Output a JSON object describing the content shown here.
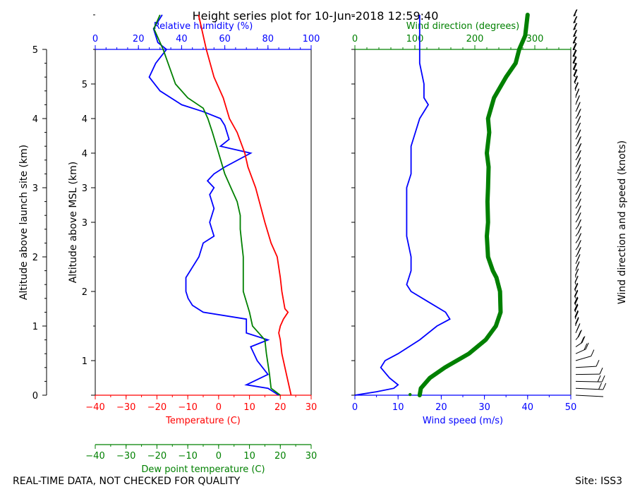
{
  "chart_data": {
    "type": "line",
    "title": "Height series plot for 10-Jun-2018 12:59:40",
    "footer_left": "REAL-TIME DATA, NOT CHECKED FOR QUALITY",
    "footer_right": "Site: ISS3",
    "colors": {
      "temperature": "#ff0000",
      "dewpoint": "#008000",
      "rh": "#0000ff",
      "wind_speed": "#0000ff",
      "wind_dir": "#008000",
      "barbs": "#000000"
    },
    "left_panel": {
      "outer_ylabel": "Altitude above launch site (km)",
      "inner_ylabel": "Altitude above MSL (km)",
      "outer_ylim": [
        0,
        5
      ],
      "outer_yticks": [
        "0",
        "1",
        "2",
        "3",
        "4",
        "5"
      ],
      "inner_yticks": [
        "1",
        "2",
        "3",
        "3",
        "4",
        "4",
        "5"
      ],
      "inner_ytick_km": [
        0.5,
        1.5,
        2.5,
        3.0,
        3.5,
        4.0,
        4.5
      ],
      "temperature_axis": {
        "label": "Temperature (C)",
        "range": [
          -40,
          30
        ],
        "ticks": [
          "−40",
          "−30",
          "−20",
          "−10",
          "0",
          "10",
          "20",
          "30"
        ]
      },
      "dewpoint_axis": {
        "label": "Dew point temperature (C)",
        "range": [
          -40,
          30
        ],
        "ticks": [
          "−40",
          "−30",
          "−20",
          "−10",
          "0",
          "10",
          "20",
          "30"
        ]
      },
      "rh_axis": {
        "label": "Relative humidity (%)",
        "range": [
          0,
          100
        ],
        "ticks": [
          "0",
          "20",
          "40",
          "60",
          "80",
          "100"
        ]
      },
      "temperature": [
        [
          0,
          23.5
        ],
        [
          0.3,
          22
        ],
        [
          0.6,
          20.5
        ],
        [
          0.8,
          20
        ],
        [
          0.9,
          19.5
        ],
        [
          1.0,
          20
        ],
        [
          1.05,
          20.5
        ],
        [
          1.1,
          21
        ],
        [
          1.2,
          22.5
        ],
        [
          1.25,
          21.5
        ],
        [
          1.5,
          20.5
        ],
        [
          1.7,
          20
        ],
        [
          2.0,
          19
        ],
        [
          2.2,
          17
        ],
        [
          2.5,
          15
        ],
        [
          3.0,
          12
        ],
        [
          3.3,
          9.5
        ],
        [
          3.5,
          8.5
        ],
        [
          3.8,
          6
        ],
        [
          4.0,
          3.5
        ],
        [
          4.3,
          1.5
        ],
        [
          4.6,
          -1.5
        ],
        [
          5.0,
          -4
        ],
        [
          5.5,
          -6.5
        ]
      ],
      "dewpoint": [
        [
          0,
          20
        ],
        [
          0.1,
          17
        ],
        [
          0.3,
          16.5
        ],
        [
          0.6,
          15.5
        ],
        [
          0.8,
          15
        ],
        [
          0.9,
          13
        ],
        [
          1.0,
          11
        ],
        [
          1.2,
          10
        ],
        [
          1.5,
          8
        ],
        [
          2.0,
          8
        ],
        [
          2.2,
          7.5
        ],
        [
          2.4,
          7
        ],
        [
          2.6,
          7
        ],
        [
          2.8,
          6
        ],
        [
          3.0,
          4
        ],
        [
          3.2,
          2
        ],
        [
          3.5,
          0
        ],
        [
          3.8,
          -2
        ],
        [
          4.0,
          -3.5
        ],
        [
          4.15,
          -5
        ],
        [
          4.3,
          -10
        ],
        [
          4.5,
          -14
        ],
        [
          5.0,
          -18
        ],
        [
          5.3,
          -21
        ],
        [
          5.5,
          -19
        ]
      ],
      "rh": [
        [
          0,
          85
        ],
        [
          0.1,
          80
        ],
        [
          0.15,
          70
        ],
        [
          0.3,
          80
        ],
        [
          0.5,
          75
        ],
        [
          0.7,
          72
        ],
        [
          0.8,
          80
        ],
        [
          0.9,
          70
        ],
        [
          1.1,
          70
        ],
        [
          1.2,
          50
        ],
        [
          1.3,
          45
        ],
        [
          1.4,
          43
        ],
        [
          1.5,
          42
        ],
        [
          1.7,
          42
        ],
        [
          1.85,
          45
        ],
        [
          2.0,
          48
        ],
        [
          2.2,
          50
        ],
        [
          2.3,
          55
        ],
        [
          2.5,
          53
        ],
        [
          2.7,
          55
        ],
        [
          2.9,
          53
        ],
        [
          3.0,
          55
        ],
        [
          3.1,
          52
        ],
        [
          3.2,
          55
        ],
        [
          3.3,
          60
        ],
        [
          3.5,
          72
        ],
        [
          3.6,
          58
        ],
        [
          3.7,
          62
        ],
        [
          3.9,
          60
        ],
        [
          4.0,
          58
        ],
        [
          4.1,
          50
        ],
        [
          4.2,
          40
        ],
        [
          4.4,
          30
        ],
        [
          4.6,
          25
        ],
        [
          4.8,
          28
        ],
        [
          5.0,
          33
        ],
        [
          5.1,
          29
        ],
        [
          5.3,
          27
        ],
        [
          5.5,
          31
        ]
      ]
    },
    "right_panel": {
      "wind_speed_axis": {
        "label": "Wind speed (m/s)",
        "range": [
          0,
          50
        ],
        "ticks": [
          "0",
          "10",
          "20",
          "30",
          "40",
          "50"
        ]
      },
      "wind_dir_axis": {
        "label": "Wind direction (degrees)",
        "range": [
          0,
          360
        ],
        "ticks": [
          "0",
          "100",
          "200",
          "300"
        ],
        "tick_values": [
          0,
          100,
          200,
          300
        ]
      },
      "barb_label": "Wind direction and speed (knots)",
      "wind_speed": [
        [
          0,
          0
        ],
        [
          0.05,
          5
        ],
        [
          0.1,
          9
        ],
        [
          0.15,
          10
        ],
        [
          0.25,
          8
        ],
        [
          0.4,
          6
        ],
        [
          0.5,
          7
        ],
        [
          0.6,
          10
        ],
        [
          0.8,
          15
        ],
        [
          1.0,
          19
        ],
        [
          1.1,
          22
        ],
        [
          1.2,
          21
        ],
        [
          1.35,
          17
        ],
        [
          1.5,
          13
        ],
        [
          1.6,
          12
        ],
        [
          1.8,
          13
        ],
        [
          2.0,
          13
        ],
        [
          2.3,
          12
        ],
        [
          2.5,
          12
        ],
        [
          2.8,
          12
        ],
        [
          3.0,
          12
        ],
        [
          3.2,
          13
        ],
        [
          3.4,
          13
        ],
        [
          3.6,
          13
        ],
        [
          3.8,
          14
        ],
        [
          4.0,
          15
        ],
        [
          4.2,
          17
        ],
        [
          4.3,
          16
        ],
        [
          4.5,
          16
        ],
        [
          4.8,
          15
        ],
        [
          5.0,
          15
        ],
        [
          5.3,
          15
        ],
        [
          5.5,
          15
        ]
      ],
      "wind_direction": [
        [
          0,
          108
        ],
        [
          0.1,
          110
        ],
        [
          0.25,
          125
        ],
        [
          0.4,
          150
        ],
        [
          0.6,
          190
        ],
        [
          0.8,
          218
        ],
        [
          1.0,
          235
        ],
        [
          1.2,
          243
        ],
        [
          1.5,
          242
        ],
        [
          1.7,
          236
        ],
        [
          1.8,
          230
        ],
        [
          2.0,
          222
        ],
        [
          2.3,
          220
        ],
        [
          2.5,
          222
        ],
        [
          2.8,
          221
        ],
        [
          3.0,
          222
        ],
        [
          3.3,
          223
        ],
        [
          3.5,
          220
        ],
        [
          3.8,
          224
        ],
        [
          4.0,
          222
        ],
        [
          4.3,
          232
        ],
        [
          4.6,
          252
        ],
        [
          4.8,
          268
        ],
        [
          5.0,
          274
        ],
        [
          5.2,
          284
        ],
        [
          5.5,
          288
        ]
      ],
      "wind_dir_stray_point": [
        0.01,
        92
      ]
    }
  }
}
